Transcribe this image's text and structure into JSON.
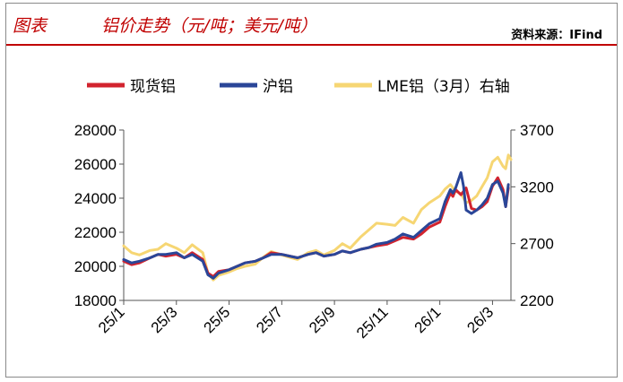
{
  "header": {
    "figure_label": "图表",
    "title": "铝价走势（元/吨；美元/吨）",
    "source": "资料来源：IFind"
  },
  "colors": {
    "spot": "#d2232e",
    "shfe": "#2a4698",
    "lme": "#f6d673",
    "accent": "#c00000"
  },
  "chart_data": {
    "type": "line",
    "title": "铝价走势（元/吨；美元/吨）",
    "xlabel": "",
    "ylabel": "",
    "x_ticks": [
      "25/1",
      "25/3",
      "25/5",
      "25/7",
      "25/9",
      "25/11",
      "26/1",
      "26/3"
    ],
    "x_range_months": [
      0,
      14.7
    ],
    "ylim_left": [
      18000,
      28000
    ],
    "ylim_right": [
      2200,
      3700
    ],
    "y_ticks_left": [
      18000,
      20000,
      22000,
      24000,
      26000,
      28000
    ],
    "y_ticks_right": [
      2200,
      2700,
      3200,
      3700
    ],
    "legend": {
      "position": "top",
      "entries": [
        "现货铝",
        "沪铝",
        "LME铝（3月）右轴"
      ]
    },
    "grid": false,
    "series": [
      {
        "name": "现货铝",
        "axis": "left",
        "color": "#d2232e",
        "x": [
          0,
          0.3,
          0.6,
          1,
          1.3,
          1.6,
          2,
          2.3,
          2.6,
          3,
          3.2,
          3.4,
          3.6,
          4,
          4.3,
          4.6,
          5,
          5.3,
          5.6,
          6,
          6.3,
          6.6,
          7,
          7.3,
          7.6,
          8,
          8.3,
          8.6,
          9,
          9.3,
          9.6,
          10,
          10.3,
          10.6,
          11,
          11.3,
          11.6,
          12,
          12.2,
          12.4,
          12.5,
          12.6,
          12.8,
          13,
          13.2,
          13.4,
          13.6,
          13.8,
          14,
          14.2,
          14.4,
          14.5,
          14.6
        ],
        "y": [
          20300,
          20100,
          20200,
          20500,
          20700,
          20600,
          20700,
          20500,
          20800,
          20400,
          19600,
          19400,
          19700,
          19800,
          20000,
          20200,
          20300,
          20500,
          20800,
          20700,
          20600,
          20500,
          20700,
          20800,
          20600,
          20700,
          20900,
          20800,
          21000,
          21100,
          21200,
          21300,
          21500,
          21700,
          21600,
          21900,
          22300,
          22600,
          23500,
          24300,
          24100,
          24500,
          24200,
          24600,
          23400,
          23300,
          23500,
          23800,
          24700,
          25200,
          24500,
          23500,
          24600
        ]
      },
      {
        "name": "沪铝",
        "axis": "left",
        "color": "#2a4698",
        "x": [
          0,
          0.3,
          0.6,
          1,
          1.3,
          1.6,
          2,
          2.3,
          2.6,
          3,
          3.2,
          3.4,
          3.6,
          4,
          4.3,
          4.6,
          5,
          5.3,
          5.6,
          6,
          6.3,
          6.6,
          7,
          7.3,
          7.6,
          8,
          8.3,
          8.6,
          9,
          9.3,
          9.6,
          10,
          10.3,
          10.6,
          11,
          11.3,
          11.6,
          12,
          12.2,
          12.4,
          12.5,
          12.6,
          12.8,
          12.9,
          13,
          13.2,
          13.4,
          13.6,
          13.8,
          14,
          14.2,
          14.4,
          14.5,
          14.6
        ],
        "y": [
          20400,
          20200,
          20300,
          20500,
          20700,
          20700,
          20800,
          20500,
          20700,
          20300,
          19500,
          19300,
          19600,
          19800,
          20000,
          20200,
          20300,
          20500,
          20700,
          20700,
          20600,
          20500,
          20700,
          20800,
          20600,
          20700,
          20900,
          20800,
          21000,
          21100,
          21300,
          21400,
          21600,
          21900,
          21700,
          22100,
          22500,
          22800,
          23800,
          24500,
          24300,
          24600,
          25500,
          24700,
          23300,
          23100,
          23300,
          23600,
          24000,
          24800,
          25000,
          24300,
          23500,
          24800
        ]
      },
      {
        "name": "LME铝（3月）右轴",
        "axis": "right",
        "color": "#f6d673",
        "x": [
          0,
          0.3,
          0.6,
          1,
          1.3,
          1.6,
          2,
          2.3,
          2.6,
          3,
          3.2,
          3.4,
          3.6,
          4,
          4.3,
          4.6,
          5,
          5.3,
          5.6,
          6,
          6.3,
          6.6,
          7,
          7.3,
          7.6,
          8,
          8.3,
          8.6,
          9,
          9.3,
          9.6,
          10,
          10.3,
          10.6,
          11,
          11.3,
          11.6,
          12,
          12.2,
          12.4,
          12.6,
          12.8,
          13,
          13.2,
          13.4,
          13.6,
          13.8,
          14,
          14.2,
          14.4,
          14.5,
          14.6,
          14.7
        ],
        "y": [
          2680,
          2620,
          2600,
          2640,
          2650,
          2700,
          2660,
          2620,
          2690,
          2620,
          2440,
          2380,
          2420,
          2450,
          2480,
          2500,
          2520,
          2580,
          2630,
          2600,
          2580,
          2560,
          2620,
          2640,
          2600,
          2640,
          2700,
          2660,
          2760,
          2820,
          2880,
          2870,
          2860,
          2930,
          2880,
          3000,
          3060,
          3120,
          3180,
          3220,
          3160,
          3140,
          3060,
          3080,
          3120,
          3200,
          3280,
          3420,
          3460,
          3380,
          3360,
          3480,
          3440
        ]
      }
    ]
  }
}
